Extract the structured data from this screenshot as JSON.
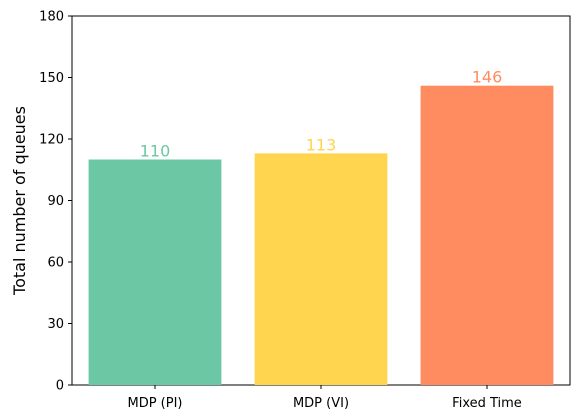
{
  "chart_data": {
    "type": "bar",
    "title": "",
    "xlabel": "",
    "ylabel": "Total number of queues",
    "categories": [
      "MDP (PI)",
      "MDP (VI)",
      "Fixed Time"
    ],
    "values": [
      110,
      113,
      146
    ],
    "data_labels": [
      "110",
      "113",
      "146"
    ],
    "colors": [
      "#6cc7a4",
      "#ffd54f",
      "#ff8c61"
    ],
    "ylim": [
      0,
      180
    ],
    "yticks": [
      0,
      30,
      60,
      90,
      120,
      150,
      180
    ],
    "ytick_labels": [
      "0",
      "30",
      "60",
      "90",
      "120",
      "150",
      "180"
    ],
    "grid": false,
    "legend": "none"
  }
}
